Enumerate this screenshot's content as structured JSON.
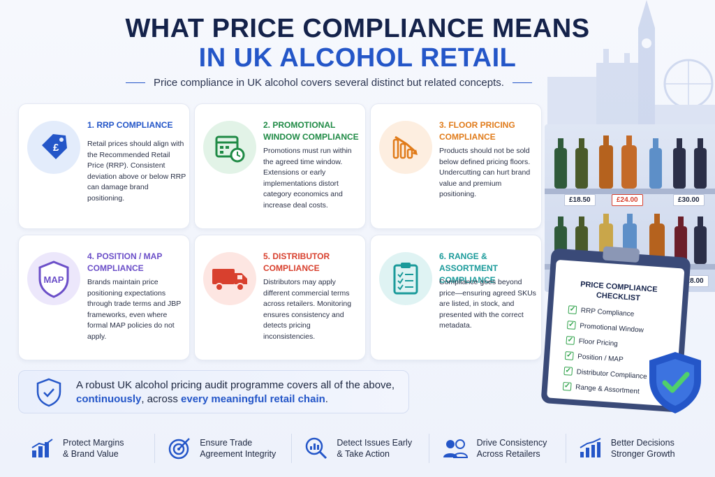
{
  "header": {
    "title_line1": "WHAT PRICE COMPLIANCE MEANS",
    "title_line2": "IN UK ALCOHOL RETAIL",
    "subtitle": "Price compliance in UK alcohol covers several distinct but related concepts."
  },
  "cards": [
    {
      "title": "1. RRP COMPLIANCE",
      "body": "Retail prices should align with the Recommended Retail Price (RRP). Consistent deviation above or below RRP can damage brand positioning.",
      "accent": "#2456c8",
      "icon": "price-tag-icon"
    },
    {
      "title": "2. PROMOTIONAL WINDOW COMPLIANCE",
      "body": "Promotions must run within the agreed time window. Extensions or early implementations distort category economics and increase deal costs.",
      "accent": "#1f8a45",
      "icon": "calendar-clock-icon"
    },
    {
      "title": "3. FLOOR PRICING COMPLIANCE",
      "body": "Products should not be sold below defined pricing floors. Undercutting can hurt brand value and premium positioning.",
      "accent": "#e07b1a",
      "icon": "declining-chart-icon"
    },
    {
      "title": "4. POSITION / MAP COMPLIANCE",
      "body": "Brands maintain price positioning expectations through trade terms and JBP frameworks, even where formal MAP policies do not apply.",
      "accent": "#6b4fc8",
      "icon": "map-shield-icon",
      "icon_text": "MAP"
    },
    {
      "title": "5. DISTRIBUTOR COMPLIANCE",
      "body": "Distributors may apply different commercial terms across retailers. Monitoring ensures consistency and detects pricing inconsistencies.",
      "accent": "#d8402e",
      "icon": "truck-icon"
    },
    {
      "title": "6. RANGE & ASSORTMENT COMPLIANCE",
      "body": "Compliance goes beyond price—ensuring agreed SKUs are listed, in stock, and presented with the correct metadata.",
      "accent": "#1a9a9a",
      "icon": "checklist-icon"
    }
  ],
  "shelf": {
    "prices_top": [
      "£18.50",
      "£24.00",
      "£30.00"
    ],
    "price_bottom": "£28.00"
  },
  "checklist": {
    "title_line1": "PRICE COMPLIANCE",
    "title_line2": "CHECKLIST",
    "items": [
      "RRP Compliance",
      "Promotional Window",
      "Floor Pricing",
      "Position / MAP",
      "Distributor Compliance",
      "Range & Assortment"
    ]
  },
  "banner": {
    "text_line1": "A robust UK alcohol pricing audit programme covers all of the above,",
    "text_highlight1": "continuously",
    "text_mid": ", across ",
    "text_highlight2": "every meaningful retail chain",
    "text_end": "."
  },
  "benefits": [
    {
      "line1": "Protect Margins",
      "line2": "& Brand Value",
      "icon": "growth-chart-icon"
    },
    {
      "line1": "Ensure Trade",
      "line2": "Agreement Integrity",
      "icon": "target-icon"
    },
    {
      "line1": "Detect Issues Early",
      "line2": "& Take Action",
      "icon": "magnifier-chart-icon"
    },
    {
      "line1": "Drive Consistency",
      "line2": "Across Retailers",
      "icon": "people-icon"
    },
    {
      "line1": "Better Decisions",
      "line2": "Stronger Growth",
      "icon": "bar-growth-icon"
    }
  ],
  "colors": {
    "navy": "#14224a",
    "blue": "#2456c8",
    "check_green": "#2fa24a"
  }
}
